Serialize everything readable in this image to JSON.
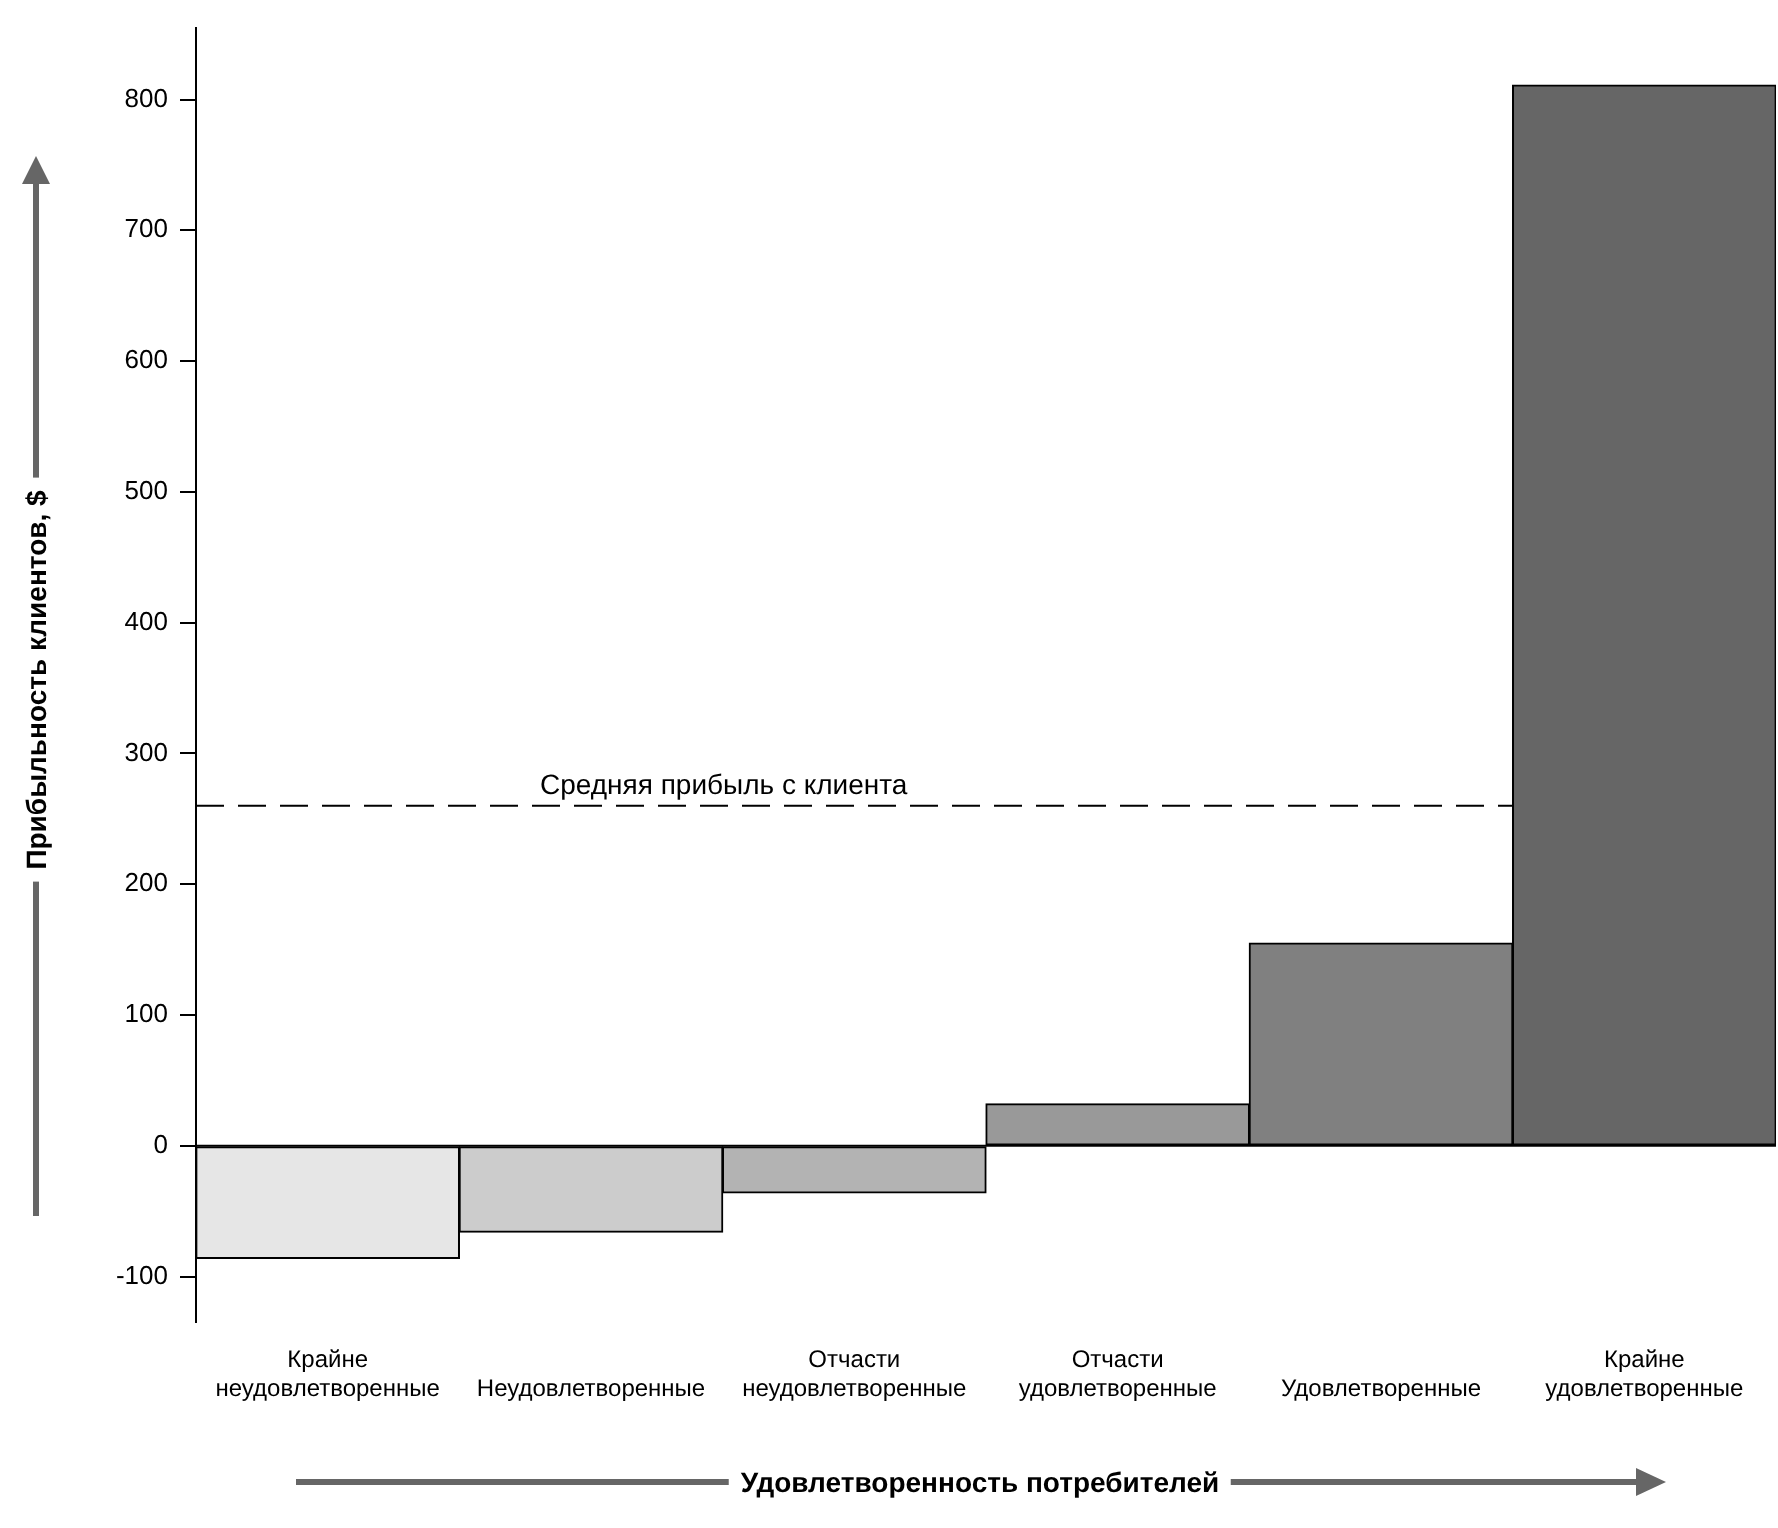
{
  "chart_data": {
    "type": "bar",
    "xlabel": "Удовлетворенность потребителей",
    "ylabel": "Прибыльность клиентов, $",
    "categories": [
      "Крайне неудовлетворенные",
      "Неудовлетворенные",
      "Отчасти неудовлетворенные",
      "Отчасти удовлетворенные",
      "Удовлетворенные",
      "Крайне удовлетворенные"
    ],
    "values": [
      -86,
      -66,
      -36,
      32,
      155,
      811
    ],
    "colors": [
      "#e6e6e6",
      "#cccccc",
      "#b3b3b3",
      "#999999",
      "#808080",
      "#666666"
    ],
    "ylim": [
      -135,
      855
    ],
    "yticks": [
      -100,
      0,
      100,
      200,
      300,
      400,
      500,
      600,
      700,
      800
    ],
    "ref_lines": [
      {
        "axis": "y",
        "value": 0,
        "line_style": "solid",
        "color": "#000000"
      },
      {
        "axis": "y",
        "value": 260,
        "label": "Средняя прибыль с клиента",
        "line_style": "dashed",
        "color": "#000000"
      }
    ],
    "legend": false
  }
}
